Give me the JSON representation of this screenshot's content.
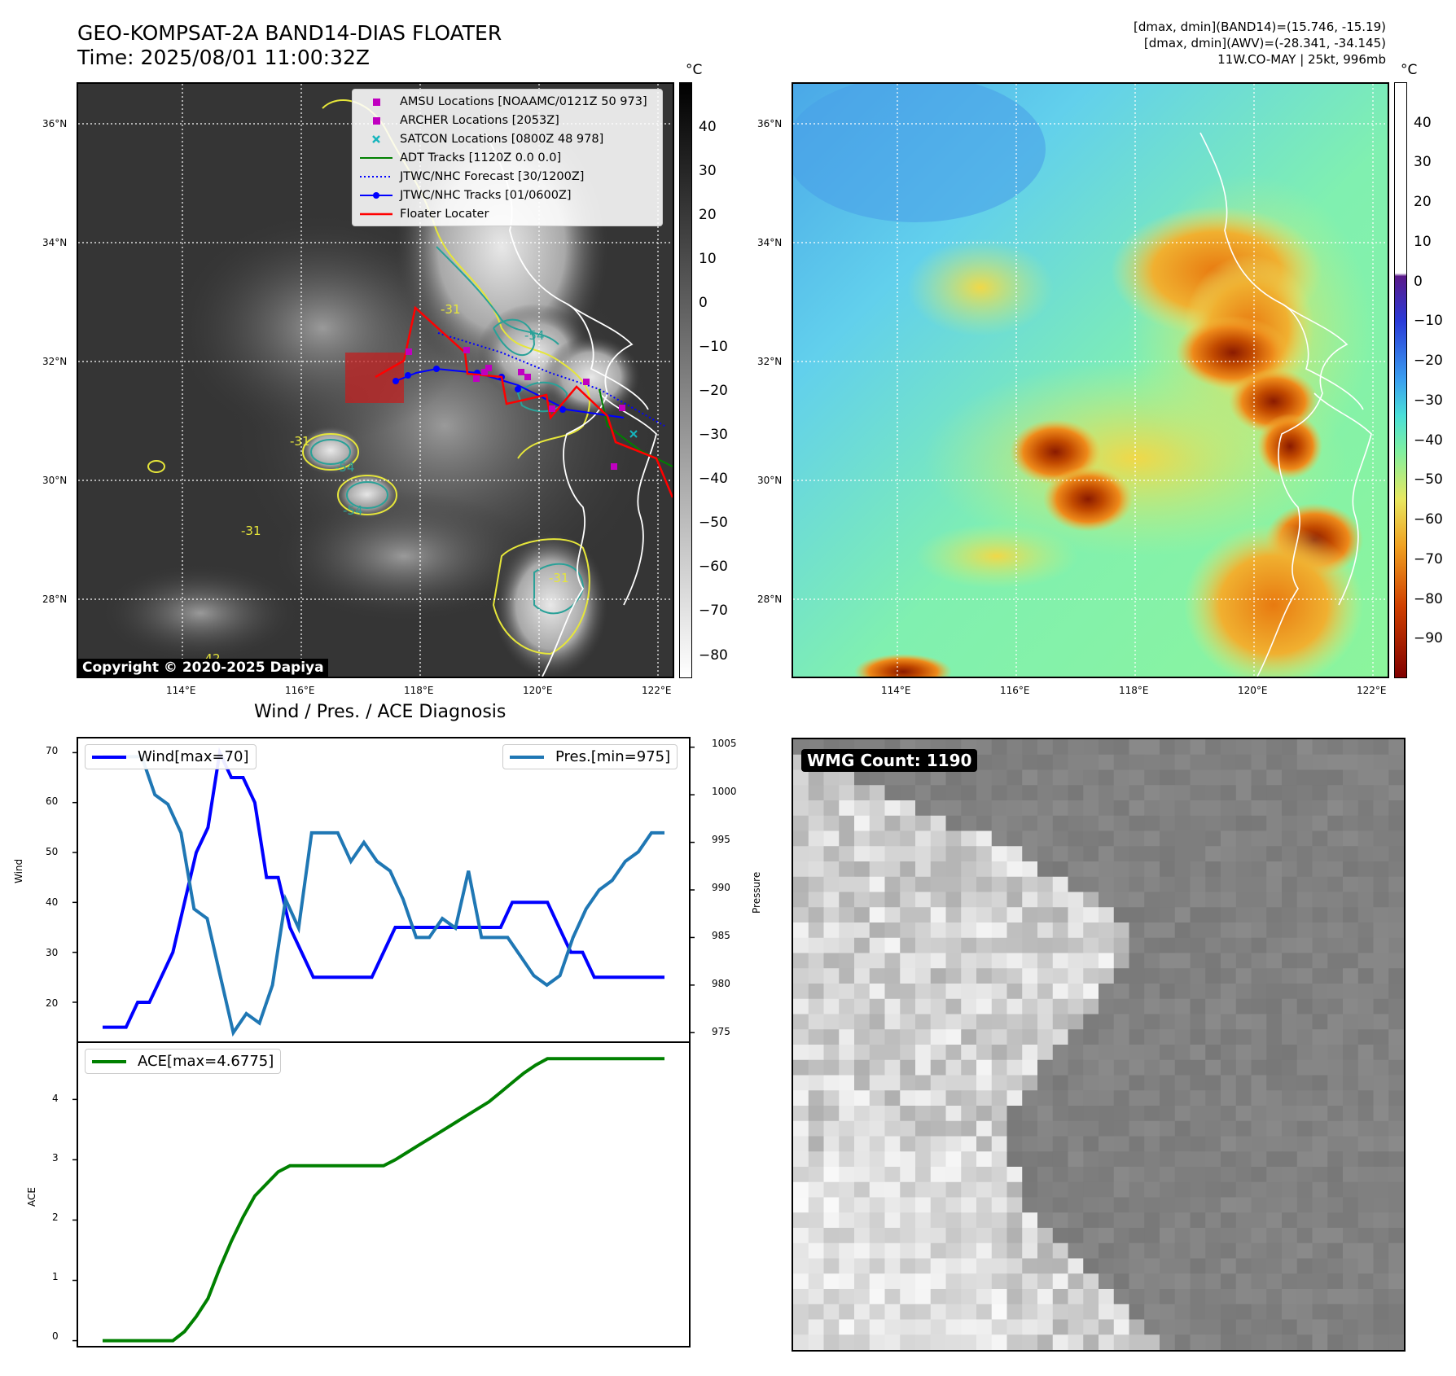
{
  "header": {
    "title_line1": "GEO-KOMPSAT-2A BAND14-DIAS FLOATER",
    "title_line2": "Time: 2025/08/01 11:00:32Z",
    "info_line1": "[dmax, dmin](BAND14)=(15.746, -15.19)",
    "info_line2": "[dmax, dmin](AWV)=(-28.341, -34.145)",
    "info_line3": "11W.CO-MAY | 25kt, 996mb"
  },
  "map": {
    "lat_labels": [
      "36°N",
      "34°N",
      "32°N",
      "30°N",
      "28°N"
    ],
    "lon_labels": [
      "114°E",
      "116°E",
      "118°E",
      "120°E",
      "122°E"
    ],
    "copyright": "Copyright © 2020-2025 Dapiya",
    "contour_labels": [
      "-31",
      "-54",
      "-31",
      "-54",
      "-54",
      "-31",
      "-31",
      "-42"
    ],
    "legend": [
      {
        "label": "AMSU Locations [NOAAMC/0121Z 50 973]",
        "symbol": "square",
        "color": "#c000c0"
      },
      {
        "label": "ARCHER Locations [2053Z]",
        "symbol": "square",
        "color": "#c000c0"
      },
      {
        "label": "SATCON Locations [0800Z 48 978]",
        "symbol": "x",
        "color": "#17b5bd"
      },
      {
        "label": "ADT Tracks [1120Z 0.0 0.0]",
        "symbol": "line",
        "color": "#008000"
      },
      {
        "label": "JTWC/NHC Forecast [30/1200Z]",
        "symbol": "dotted",
        "color": "#0000ff"
      },
      {
        "label": "JTWC/NHC Tracks [01/0600Z]",
        "symbol": "line-dot",
        "color": "#0000ff"
      },
      {
        "label": "Floater Locater",
        "symbol": "line",
        "color": "#ff0000"
      }
    ]
  },
  "colorbar_left": {
    "unit": "°C",
    "ticks": [
      "40",
      "30",
      "20",
      "10",
      "0",
      "−10",
      "−20",
      "−30",
      "−40",
      "−50",
      "−60",
      "−70",
      "−80"
    ]
  },
  "colorbar_right": {
    "unit": "°C",
    "ticks": [
      "40",
      "30",
      "20",
      "10",
      "0",
      "−10",
      "−20",
      "−30",
      "−40",
      "−50",
      "−60",
      "−70",
      "−80",
      "−90"
    ]
  },
  "diagnosis": {
    "title": "Wind / Pres. / ACE Diagnosis",
    "wind_ylabel": "Wind",
    "pres_ylabel": "Pressure",
    "ace_ylabel": "ACE",
    "wind_legend": "Wind[max=70]",
    "pres_legend": "Pres.[min=975]",
    "ace_legend": "ACE[max=4.6775]",
    "wind_ticks": [
      "70",
      "60",
      "50",
      "40",
      "30",
      "20"
    ],
    "pres_ticks": [
      "1005",
      "1000",
      "995",
      "990",
      "985",
      "980",
      "975"
    ],
    "ace_ticks": [
      "4",
      "3",
      "2",
      "1",
      "0"
    ]
  },
  "wmg": {
    "label": "WMG Count: 1190"
  },
  "chart_data": [
    {
      "type": "line",
      "title": "Wind / Pres. / ACE Diagnosis",
      "ylabel": "Wind",
      "ylim": [
        12,
        73
      ],
      "series": [
        {
          "name": "Wind[max=70]",
          "color": "#0000ff",
          "values": [
            15,
            15,
            15,
            20,
            20,
            25,
            30,
            40,
            50,
            55,
            70,
            65,
            65,
            60,
            45,
            45,
            35,
            30,
            25,
            25,
            25,
            25,
            25,
            25,
            30,
            35,
            35,
            35,
            35,
            35,
            35,
            35,
            35,
            35,
            35,
            40,
            40,
            40,
            40,
            35,
            30,
            30,
            25,
            25,
            25,
            25,
            25,
            25,
            25
          ]
        }
      ]
    },
    {
      "type": "line",
      "ylabel": "Pressure",
      "ylim": [
        974,
        1006
      ],
      "series": [
        {
          "name": "Pres.[min=975]",
          "color": "#1f77b4",
          "values": [
            1004,
            1004,
            1004,
            1004,
            1000,
            999,
            996,
            988,
            987,
            981,
            975,
            977,
            976,
            980,
            989,
            986,
            996,
            996,
            996,
            993,
            995,
            993,
            992,
            989,
            985,
            985,
            987,
            986,
            992,
            985,
            985,
            985,
            983,
            981,
            980,
            981,
            985,
            988,
            990,
            991,
            993,
            994,
            996,
            996
          ]
        }
      ]
    },
    {
      "type": "line",
      "ylabel": "ACE",
      "ylim": [
        -0.1,
        4.95
      ],
      "series": [
        {
          "name": "ACE[max=4.6775]",
          "color": "#008000",
          "values": [
            0,
            0,
            0,
            0,
            0,
            0,
            0,
            0.15,
            0.4,
            0.7,
            1.2,
            1.65,
            2.05,
            2.4,
            2.6,
            2.8,
            2.9,
            2.9,
            2.9,
            2.9,
            2.9,
            2.9,
            2.9,
            2.9,
            2.9,
            3.0,
            3.12,
            3.24,
            3.36,
            3.48,
            3.6,
            3.72,
            3.84,
            3.96,
            4.12,
            4.28,
            4.44,
            4.57,
            4.6775,
            4.6775,
            4.6775,
            4.6775,
            4.6775,
            4.6775,
            4.6775,
            4.6775,
            4.6775,
            4.6775,
            4.6775
          ]
        }
      ]
    }
  ]
}
